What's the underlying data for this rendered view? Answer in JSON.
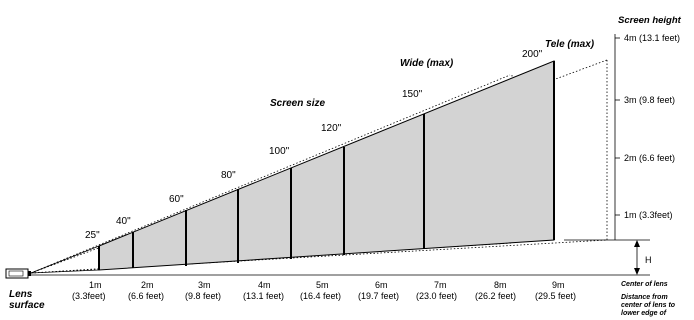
{
  "title_screen_size": "Screen size",
  "label_wide": "Wide (max)",
  "label_tele": "Tele (max)",
  "screen_height_title": "Screen height",
  "heights": [
    "4m (13.1 feet)",
    "3m (9.8 feet)",
    "2m (6.6 feet)",
    "1m (3.3feet)"
  ],
  "sizes": [
    "25\"",
    "40\"",
    "60\"",
    "80\"",
    "100\"",
    "120\"",
    "150\"",
    "200\""
  ],
  "distances": [
    {
      "m": "1m",
      "ft": "(3.3feet)"
    },
    {
      "m": "2m",
      "ft": "(6.6 feet)"
    },
    {
      "m": "3m",
      "ft": "(9.8 feet)"
    },
    {
      "m": "4m",
      "ft": "(13.1 feet)"
    },
    {
      "m": "5m",
      "ft": "(16.4 feet)"
    },
    {
      "m": "6m",
      "ft": "(19.7 feet)"
    },
    {
      "m": "7m",
      "ft": "(23.0 feet)"
    },
    {
      "m": "8m",
      "ft": "(26.2 feet)"
    },
    {
      "m": "9m",
      "ft": "(29.5 feet)"
    }
  ],
  "lens_surface": [
    "Lens",
    "surface"
  ],
  "center_of_lens": "Center of lens",
  "h_label": "H",
  "distance_note": [
    "Distance from",
    "center of lens to",
    "lower edge of"
  ],
  "colors": {
    "fill": "#d3d3d3",
    "line": "#000000"
  }
}
